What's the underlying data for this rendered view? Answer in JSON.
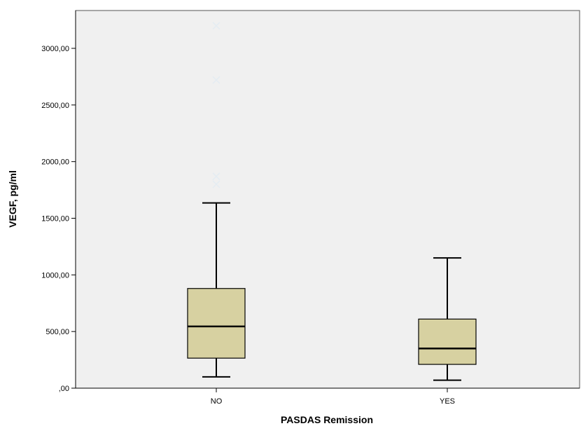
{
  "chart_data": {
    "type": "box",
    "xlabel": "PASDAS Remission",
    "ylabel": "VEGF, pg/ml",
    "ylim": [
      0,
      3300
    ],
    "yticks": [
      {
        "value": 0,
        "label": ",00"
      },
      {
        "value": 500,
        "label": "500,00"
      },
      {
        "value": 1000,
        "label": "1000,00"
      },
      {
        "value": 1500,
        "label": "1500,00"
      },
      {
        "value": 2000,
        "label": "2000,00"
      },
      {
        "value": 2500,
        "label": "2500,00"
      },
      {
        "value": 3000,
        "label": "3000,00"
      }
    ],
    "categories": [
      "NO",
      "YES"
    ],
    "boxes": [
      {
        "category": "NO",
        "min": 100,
        "q1": 265,
        "median": 545,
        "q3": 880,
        "max": 1635,
        "outliers": [
          1800,
          1870,
          2720,
          3200
        ]
      },
      {
        "category": "YES",
        "min": 70,
        "q1": 210,
        "median": 350,
        "q3": 610,
        "max": 1150,
        "outliers": []
      }
    ],
    "grid": false,
    "colors": {
      "plot_background": "#f0f0f0",
      "box_fill": "#d7d1a1",
      "outlier": "#e4ecf2",
      "line": "#000000"
    }
  }
}
